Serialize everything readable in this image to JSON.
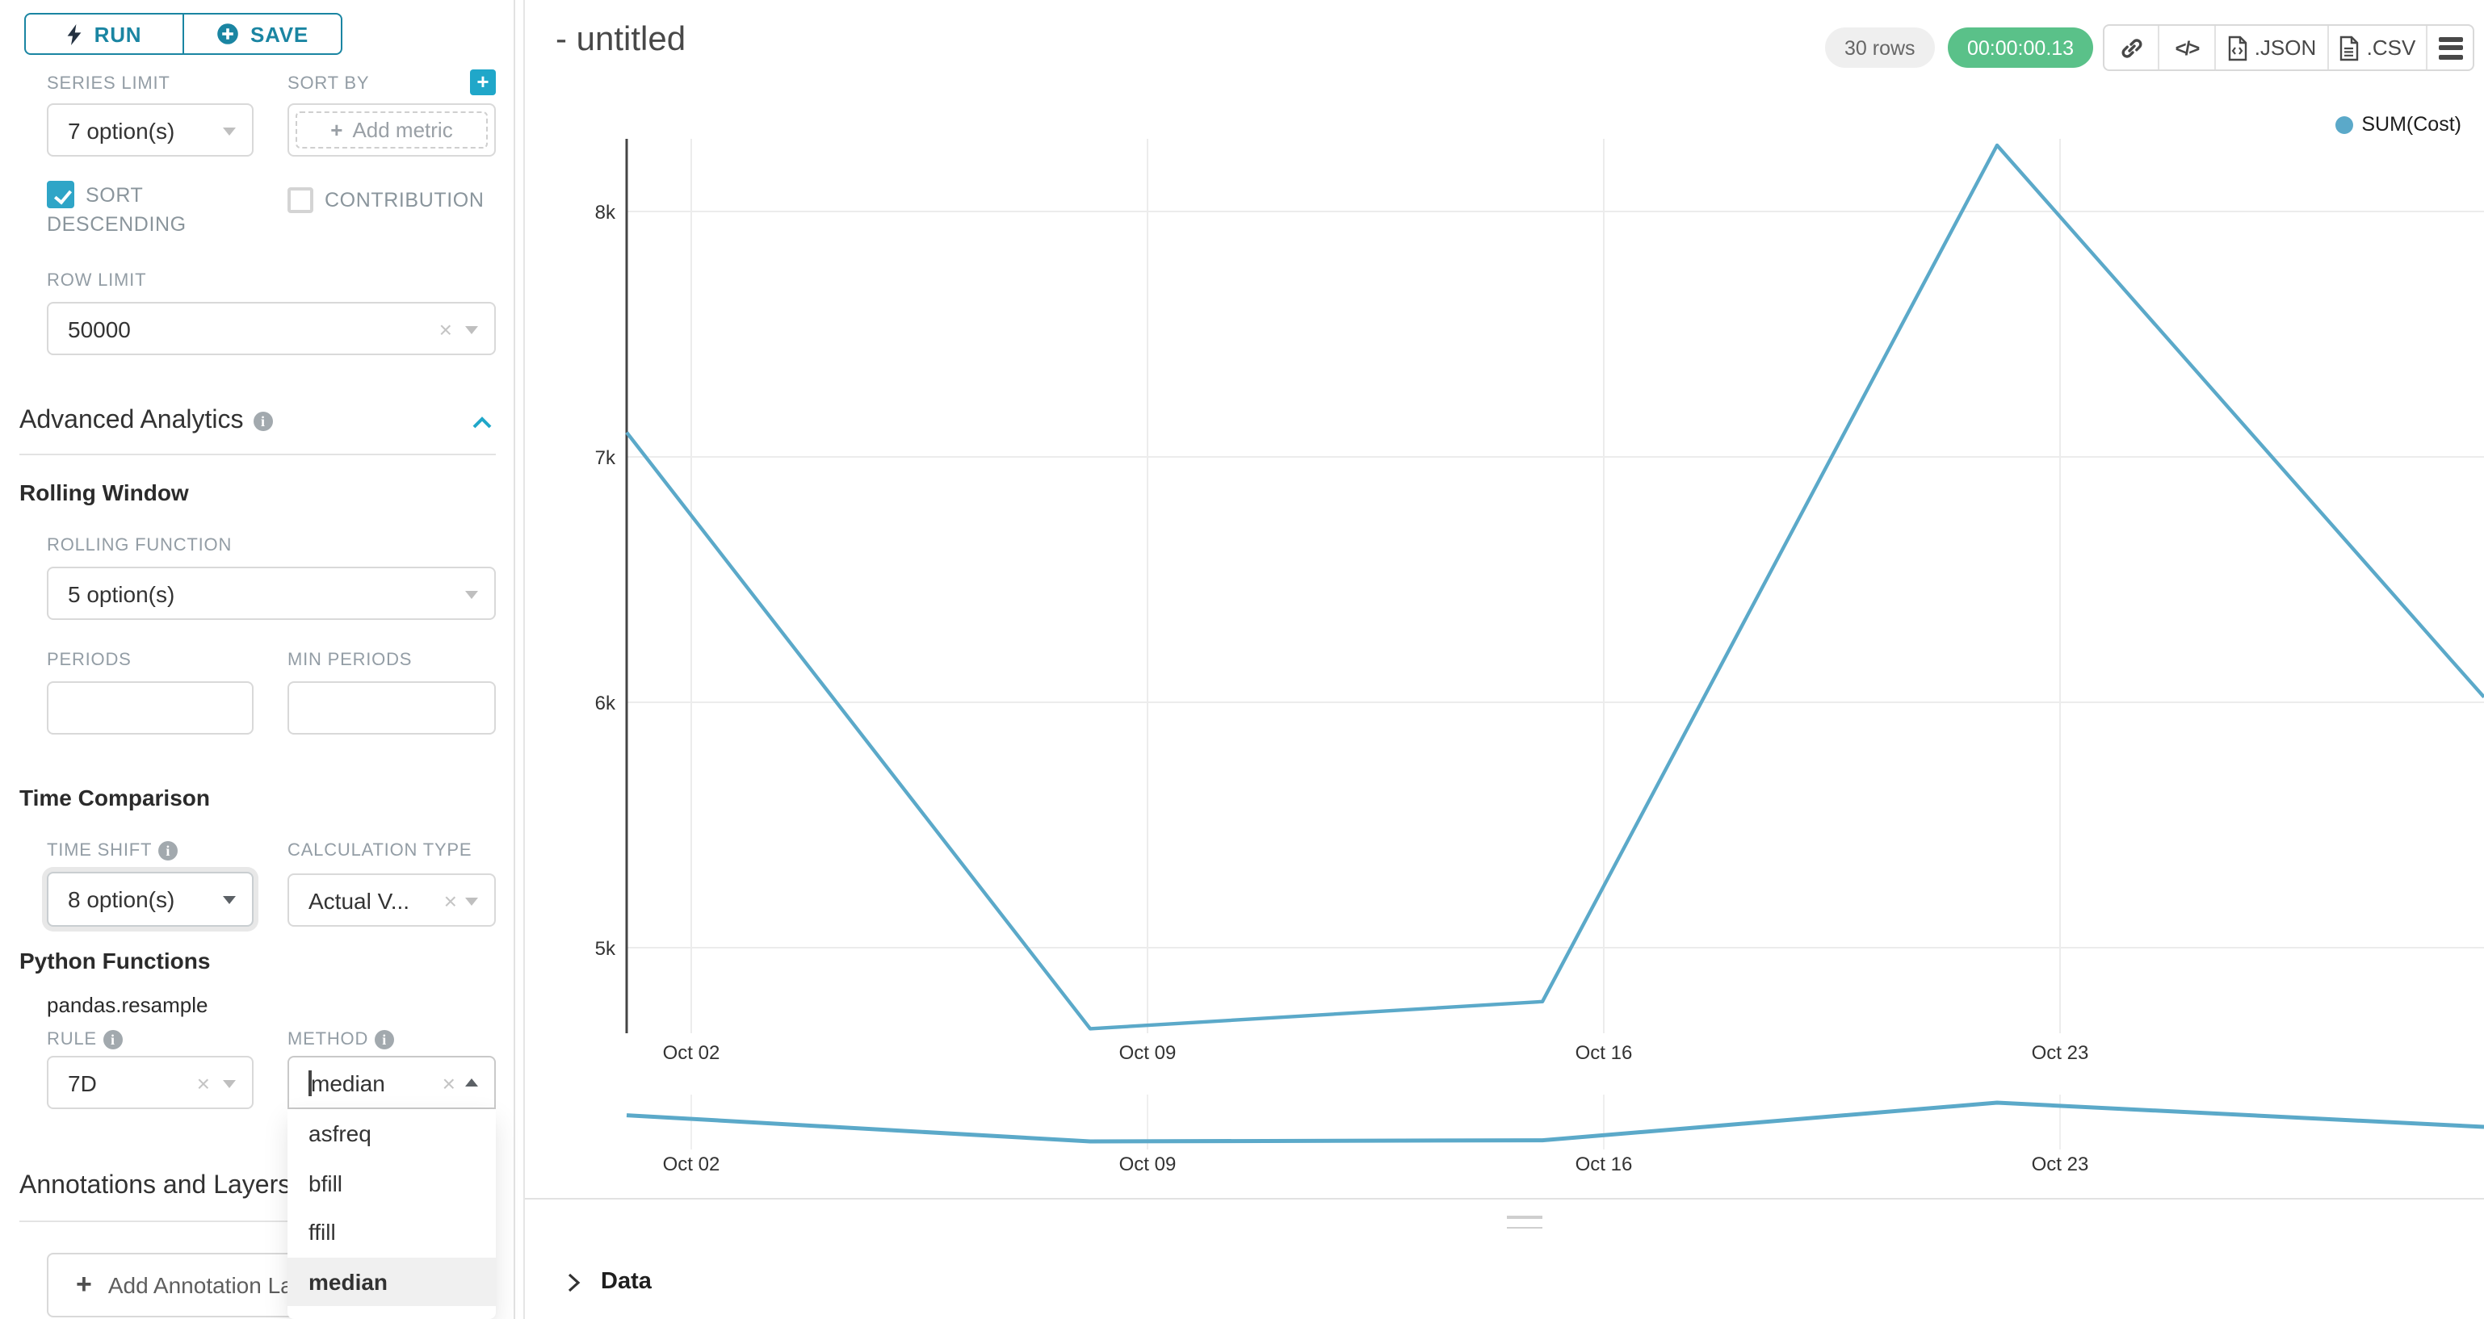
{
  "toolbar": {
    "run_label": "RUN",
    "save_label": "SAVE"
  },
  "controls": {
    "series_limit": {
      "label": "SERIES LIMIT",
      "value": "7 option(s)"
    },
    "sort_by": {
      "label": "SORT BY",
      "placeholder": "Add metric",
      "plus": "+"
    },
    "sort_descending": {
      "label": "SORT DESCENDING",
      "checked": true
    },
    "contribution": {
      "label": "CONTRIBUTION",
      "checked": false
    },
    "row_limit": {
      "label": "ROW LIMIT",
      "value": "50000"
    },
    "advanced_analytics": {
      "heading": "Advanced Analytics"
    },
    "rolling_window": {
      "heading": "Rolling Window",
      "rolling_function": {
        "label": "ROLLING FUNCTION",
        "value": "5 option(s)"
      },
      "periods": {
        "label": "PERIODS",
        "value": ""
      },
      "min_periods": {
        "label": "MIN PERIODS",
        "value": ""
      }
    },
    "time_comparison": {
      "heading": "Time Comparison",
      "time_shift": {
        "label": "TIME SHIFT",
        "value": "8 option(s)"
      },
      "calculation_type": {
        "label": "CALCULATION TYPE",
        "value": "Actual V..."
      }
    },
    "python_functions": {
      "heading": "Python Functions",
      "subheading": "pandas.resample",
      "rule": {
        "label": "RULE",
        "value": "7D"
      },
      "method": {
        "label": "METHOD",
        "value": "median",
        "options": [
          "asfreq",
          "bfill",
          "ffill",
          "median"
        ],
        "selected": "median"
      }
    },
    "annotations": {
      "heading": "Annotations and Layers",
      "add_button": "Add Annotation Layer"
    }
  },
  "header": {
    "title": "- untitled",
    "rows_badge": "30 rows",
    "timer": "00:00:00.13",
    "json_label": ".JSON",
    "csv_label": ".CSV"
  },
  "chart_data": {
    "type": "line",
    "title": "",
    "legend": [
      "SUM(Cost)"
    ],
    "legend_position": "top-right",
    "series": [
      {
        "name": "SUM(Cost)",
        "x": [
          "Oct 01",
          "Oct 08",
          "Oct 15",
          "Oct 22",
          "Oct 29"
        ],
        "values": [
          7100,
          4670,
          4780,
          8270,
          6170
        ]
      }
    ],
    "x_tick_labels": [
      "Oct 02",
      "Oct 09",
      "Oct 16",
      "Oct 23"
    ],
    "y_tick_labels": [
      "8k",
      "7k",
      "6k",
      "5k"
    ],
    "y_ticks": [
      8000,
      7000,
      6000,
      5000
    ],
    "ylim": [
      4600,
      8400
    ],
    "grid": true,
    "note": "last segment clipped at right viewport edge; preview scrubber repeats same series below main plot",
    "line_color": "#5BA9C9"
  },
  "data_panel": {
    "label": "Data"
  },
  "colors": {
    "primary_teal": "#20A7C9",
    "button_teal": "#1A85A2",
    "success_green": "#5AC189",
    "line_blue": "#5BA9C9",
    "grid_gray": "#ECECEC",
    "label_gray": "#939DA5"
  }
}
